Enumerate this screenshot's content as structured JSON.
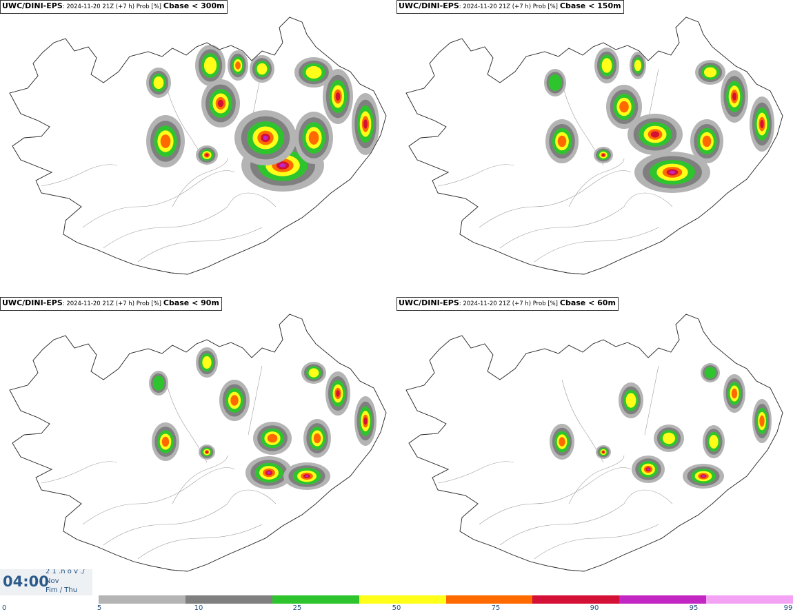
{
  "panels": [
    {
      "model": "UWC/DINI-EPS",
      "run": ": 2024-11-20 21Z (+7 h) Prob [%]",
      "variable": "Cbase < 300m"
    },
    {
      "model": "UWC/DINI-EPS",
      "run": ": 2024-11-20 21Z (+7 h) Prob [%]",
      "variable": "Cbase < 150m"
    },
    {
      "model": "UWC/DINI-EPS",
      "run": ": 2024-11-20 21Z (+7 h) Prob [%]",
      "variable": "Cbase < 90m"
    },
    {
      "model": "UWC/DINI-EPS",
      "run": ": 2024-11-20 21Z (+7 h) Prob [%]",
      "variable": "Cbase < 60m"
    }
  ],
  "time": {
    "clock": "04:00",
    "line1": "2 1 .n o v ./",
    "line2": "Nov",
    "line3": "Fim / Thu"
  },
  "legend": {
    "labels": [
      "0",
      "5",
      "10",
      "25",
      "50",
      "75",
      "90",
      "95",
      "99"
    ],
    "colors": [
      "#b4b4b4",
      "#7f7f7f",
      "#2ec42e",
      "#ffff1a",
      "#ff6a00",
      "#d41036",
      "#c327c3",
      "#f4a3f4"
    ]
  }
}
